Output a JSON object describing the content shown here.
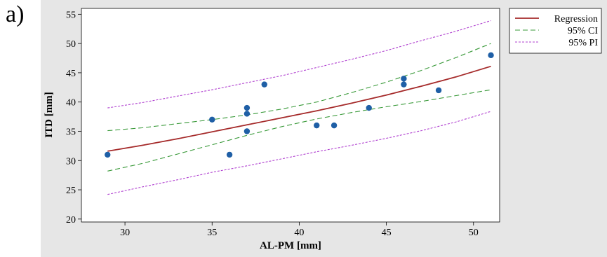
{
  "panel_label": "a)",
  "colors": {
    "background": "#e6e6e6",
    "plot_bg": "#ffffff",
    "regression": "#a52a2a",
    "ci": "#3a9a3a",
    "pi": "#b040d0",
    "points": "#1f5fa6"
  },
  "chart_data": {
    "type": "scatter",
    "title": "",
    "xlabel": "AL-PM [mm]",
    "ylabel": "ITD [mm]",
    "xlim": [
      27.5,
      51.5
    ],
    "ylim": [
      19.5,
      56
    ],
    "xticks": [
      30,
      35,
      40,
      45,
      50
    ],
    "yticks": [
      20,
      25,
      30,
      35,
      40,
      45,
      50,
      55
    ],
    "grid": false,
    "legend_position": "right",
    "points": {
      "x": [
        29,
        35,
        36,
        37,
        37,
        37,
        38,
        41,
        42,
        44,
        46,
        46,
        48,
        51
      ],
      "y": [
        31,
        37,
        31,
        39,
        38,
        35,
        43,
        36,
        36,
        39,
        44,
        43,
        42,
        48
      ]
    },
    "series": [
      {
        "name": "Regression",
        "style": "solid",
        "x": [
          29,
          31,
          33,
          35,
          37,
          39,
          41,
          43,
          45,
          47,
          49,
          51
        ],
        "y": [
          31.6,
          32.6,
          33.7,
          34.9,
          36.1,
          37.3,
          38.5,
          39.8,
          41.2,
          42.7,
          44.3,
          46.1
        ]
      },
      {
        "name": "95% CI",
        "style": "dashed",
        "x": [
          29,
          31,
          33,
          35,
          37,
          39,
          41,
          43,
          45,
          47,
          49,
          51
        ],
        "y": [
          35.1,
          35.6,
          36.3,
          37.0,
          37.8,
          38.8,
          40.0,
          41.6,
          43.4,
          45.4,
          47.6,
          50.0
        ]
      },
      {
        "name": "95% CI",
        "style": "dashed",
        "show_in_legend": false,
        "x": [
          29,
          31,
          33,
          35,
          37,
          39,
          41,
          43,
          45,
          47,
          49,
          51
        ],
        "y": [
          28.2,
          29.5,
          31.1,
          32.7,
          34.3,
          35.8,
          37.1,
          38.2,
          39.2,
          40.1,
          41.1,
          42.1
        ]
      },
      {
        "name": "95% PI",
        "style": "dotted",
        "x": [
          29,
          31,
          33,
          35,
          37,
          39,
          41,
          43,
          45,
          47,
          49,
          51
        ],
        "y": [
          39.0,
          39.9,
          41.0,
          42.1,
          43.3,
          44.5,
          45.9,
          47.3,
          48.8,
          50.5,
          52.1,
          53.9
        ]
      },
      {
        "name": "95% PI",
        "style": "dotted",
        "show_in_legend": false,
        "x": [
          29,
          31,
          33,
          35,
          37,
          39,
          41,
          43,
          45,
          47,
          49,
          51
        ],
        "y": [
          24.2,
          25.5,
          26.7,
          28.0,
          29.1,
          30.3,
          31.5,
          32.6,
          33.8,
          35.1,
          36.6,
          38.4
        ]
      }
    ]
  }
}
